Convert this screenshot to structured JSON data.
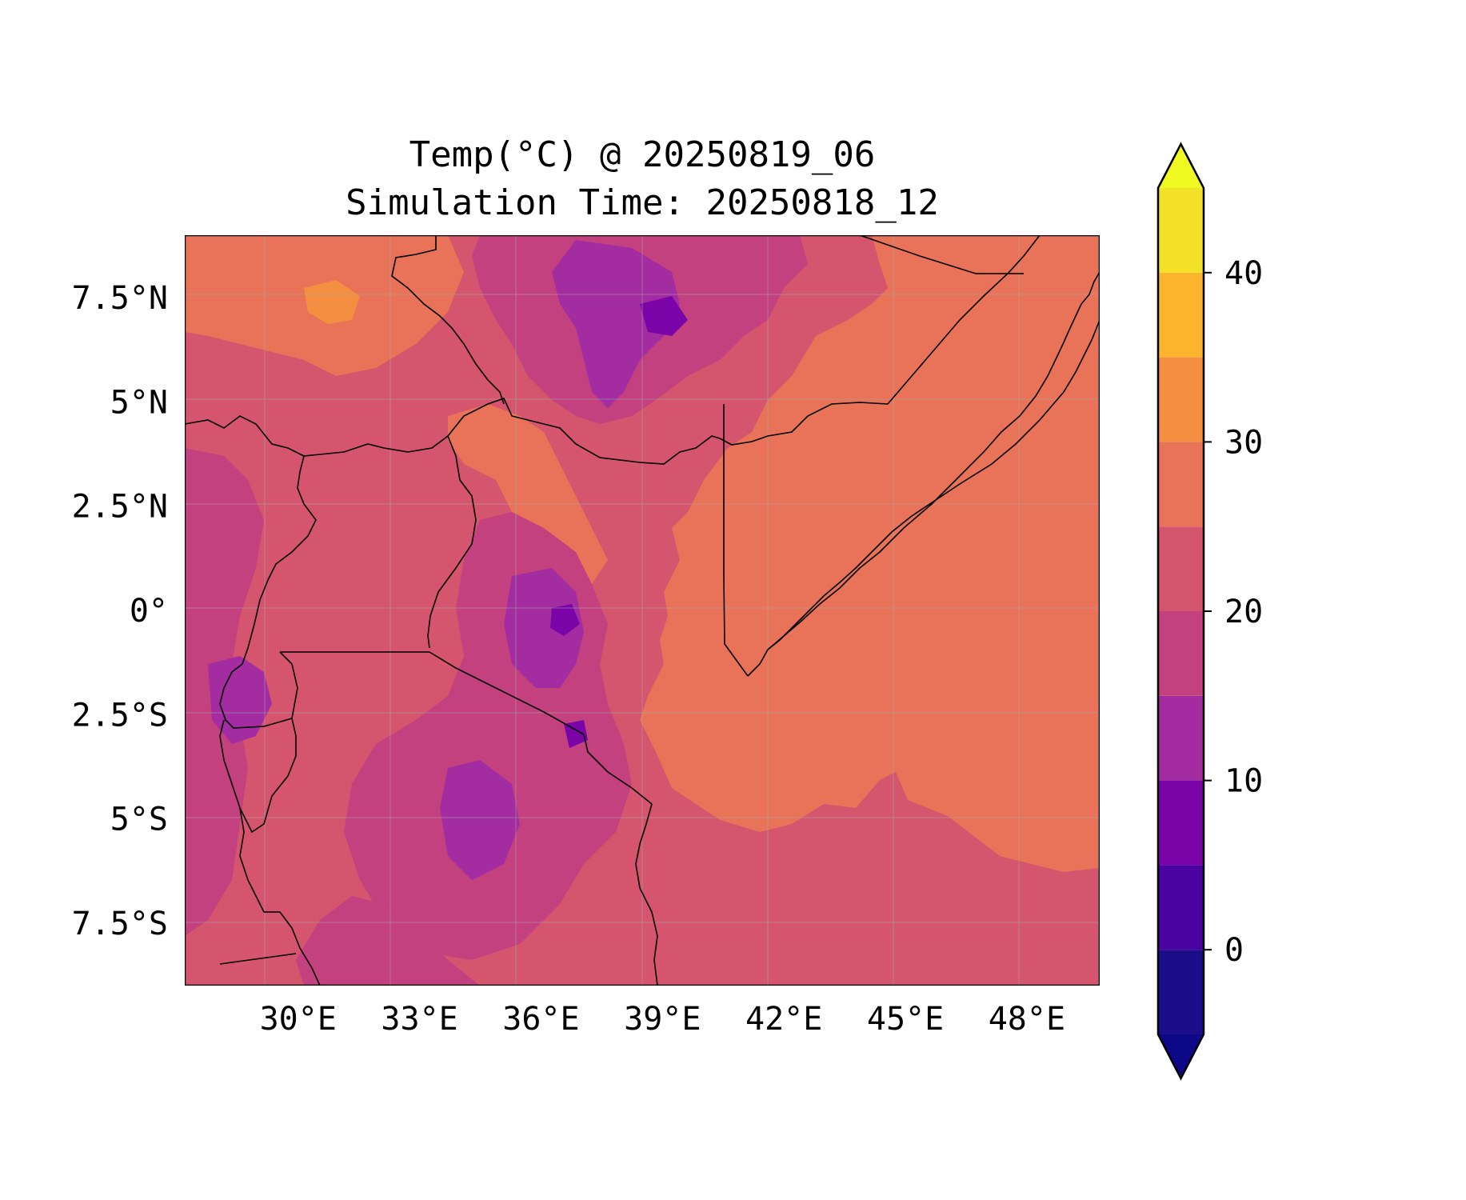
{
  "title": {
    "line1": "Temp(°C) @ 20250819_06",
    "line2": "Simulation Time: 20250818_12"
  },
  "map": {
    "lon_range": [
      27.2,
      49.8
    ],
    "lat_range": [
      -9.0,
      9.0
    ],
    "lon_ticks": [
      {
        "value": 30,
        "label": "30°E"
      },
      {
        "value": 33,
        "label": "33°E"
      },
      {
        "value": 36,
        "label": "36°E"
      },
      {
        "value": 39,
        "label": "39°E"
      },
      {
        "value": 42,
        "label": "42°E"
      },
      {
        "value": 45,
        "label": "45°E"
      },
      {
        "value": 48,
        "label": "48°E"
      }
    ],
    "lat_ticks": [
      {
        "value": 7.5,
        "label": "7.5°N"
      },
      {
        "value": 5,
        "label": "5°N"
      },
      {
        "value": 2.5,
        "label": "2.5°N"
      },
      {
        "value": 0,
        "label": "0°"
      },
      {
        "value": -2.5,
        "label": "2.5°S"
      },
      {
        "value": -5,
        "label": "5°S"
      },
      {
        "value": -7.5,
        "label": "7.5°S"
      }
    ],
    "gridlines": true
  },
  "colorbar": {
    "levels": [
      -5,
      0,
      5,
      10,
      15,
      20,
      25,
      30,
      35,
      40,
      45
    ],
    "colors": [
      "#1b0c8a",
      "#4a02a0",
      "#7a04a8",
      "#a32ca0",
      "#c4417f",
      "#d5546e",
      "#e87358",
      "#f48f41",
      "#fcb42d",
      "#f2e126"
    ],
    "under_color": "#0d0887",
    "over_color": "#f0f921",
    "extend": "both",
    "ticks": [
      {
        "value": 0,
        "label": "0"
      },
      {
        "value": 10,
        "label": "10"
      },
      {
        "value": 20,
        "label": "20"
      },
      {
        "value": 30,
        "label": "30"
      },
      {
        "value": 40,
        "label": "40"
      }
    ]
  },
  "colors": {
    "background": "#d5546e",
    "warm_lowland": "#e87358",
    "cool_highland": "#c4417f",
    "cold_peaks": "#a32ca0",
    "coldest": "#7a04a8",
    "warm_patch": "#f48f41",
    "border": "#000000"
  }
}
